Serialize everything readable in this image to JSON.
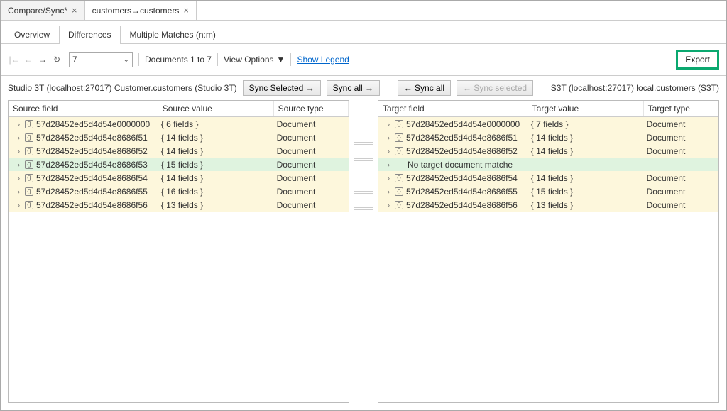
{
  "topTabs": [
    {
      "label": "Compare/Sync*",
      "active": false
    },
    {
      "label": "customers→customers",
      "active": true
    }
  ],
  "subTabs": [
    {
      "label": "Overview",
      "active": false
    },
    {
      "label": "Differences",
      "active": true
    },
    {
      "label": "Multiple Matches (n:m)",
      "active": false
    }
  ],
  "toolbar": {
    "page_value": "7",
    "docs_text": "Documents 1 to 7",
    "view_options": "View Options",
    "show_legend": "Show Legend",
    "export": "Export"
  },
  "source": {
    "conn": "Studio 3T (localhost:27017) Customer.customers (Studio 3T)",
    "sync_selected": "Sync Selected →",
    "sync_all": "Sync all →",
    "headers": {
      "field": "Source field",
      "value": "Source value",
      "type": "Source type"
    },
    "rows": [
      {
        "id": "57d28452ed5d4d54e0000000",
        "value": "{ 6 fields }",
        "type": "Document",
        "cls": "yellow"
      },
      {
        "id": "57d28452ed5d4d54e8686f51",
        "value": "{ 14 fields }",
        "type": "Document",
        "cls": "yellow"
      },
      {
        "id": "57d28452ed5d4d54e8686f52",
        "value": "{ 14 fields }",
        "type": "Document",
        "cls": "yellow"
      },
      {
        "id": "57d28452ed5d4d54e8686f53",
        "value": "{ 15 fields }",
        "type": "Document",
        "cls": "green"
      },
      {
        "id": "57d28452ed5d4d54e8686f54",
        "value": "{ 14 fields }",
        "type": "Document",
        "cls": "yellow"
      },
      {
        "id": "57d28452ed5d4d54e8686f55",
        "value": "{ 16 fields }",
        "type": "Document",
        "cls": "yellow"
      },
      {
        "id": "57d28452ed5d4d54e8686f56",
        "value": "{ 13 fields }",
        "type": "Document",
        "cls": "yellow"
      }
    ]
  },
  "target": {
    "conn": "S3T (localhost:27017) local.customers (S3T)",
    "sync_all": "← Sync all",
    "sync_selected": "← Sync selected",
    "headers": {
      "field": "Target field",
      "value": "Target value",
      "type": "Target type"
    },
    "rows": [
      {
        "id": "57d28452ed5d4d54e0000000",
        "value": "{ 7 fields }",
        "type": "Document",
        "cls": "yellow"
      },
      {
        "id": "57d28452ed5d4d54e8686f51",
        "value": "{ 14 fields }",
        "type": "Document",
        "cls": "yellow"
      },
      {
        "id": "57d28452ed5d4d54e8686f52",
        "value": "{ 14 fields }",
        "type": "Document",
        "cls": "yellow"
      },
      {
        "msg": "No target document matche",
        "cls": "green",
        "nomatch": true
      },
      {
        "id": "57d28452ed5d4d54e8686f54",
        "value": "{ 14 fields }",
        "type": "Document",
        "cls": "yellow"
      },
      {
        "id": "57d28452ed5d4d54e8686f55",
        "value": "{ 15 fields }",
        "type": "Document",
        "cls": "yellow"
      },
      {
        "id": "57d28452ed5d4d54e8686f56",
        "value": "{ 13 fields }",
        "type": "Document",
        "cls": "yellow"
      }
    ]
  },
  "colors": {
    "highlight_green": "#0aa86f",
    "row_yellow": "#fdf7dc",
    "row_green": "#dff3df"
  }
}
